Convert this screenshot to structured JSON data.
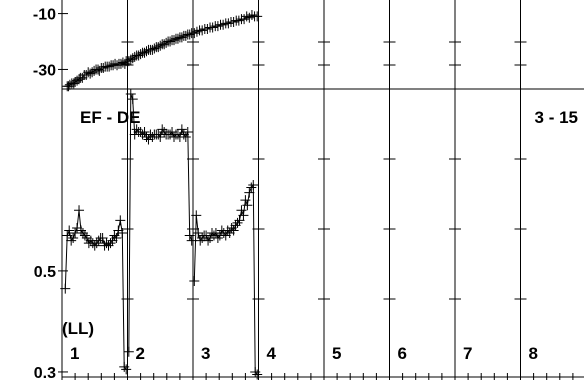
{
  "chart_data": {
    "type": "line",
    "panels": [
      {
        "id": "top",
        "ylim": [
          -37,
          -8
        ],
        "yticks": [
          {
            "value": -10,
            "label": "-10"
          },
          {
            "value": -30,
            "label": "-30"
          }
        ],
        "series": [
          {
            "x": [
              0.08,
              0.1,
              0.12,
              0.15,
              0.18,
              0.2,
              0.23,
              0.26,
              0.28,
              0.31,
              0.34,
              0.37,
              0.4,
              0.43,
              0.46,
              0.49,
              0.52,
              0.55,
              0.57,
              0.6,
              0.63,
              0.66,
              0.69,
              0.72,
              0.75,
              0.78,
              0.81,
              0.84,
              0.87,
              0.9,
              0.93,
              0.96,
              0.98
            ],
            "y": [
              -36,
              -36,
              -35.5,
              -35,
              -35,
              -34.5,
              -34,
              -33.5,
              -33,
              -33,
              -32,
              -32,
              -31,
              -31.5,
              -31,
              -30.5,
              -30,
              -30,
              -30.5,
              -29.5,
              -29.5,
              -29,
              -29,
              -29,
              -28.5,
              -28.5,
              -28,
              -28.5,
              -28,
              -28,
              -27.5,
              -28,
              -27
            ]
          },
          {
            "x": [
              1.02,
              1.05,
              1.08,
              1.11,
              1.14,
              1.17,
              1.2,
              1.23,
              1.26,
              1.29,
              1.32,
              1.35,
              1.38,
              1.41,
              1.44,
              1.47,
              1.5,
              1.53,
              1.56,
              1.59,
              1.62,
              1.65,
              1.68,
              1.71,
              1.74,
              1.77,
              1.8,
              1.83,
              1.86,
              1.89,
              1.92,
              1.95,
              1.98
            ],
            "y": [
              -27,
              -26.5,
              -26,
              -25.5,
              -25,
              -25,
              -24.5,
              -24,
              -24,
              -23.5,
              -23,
              -23,
              -23,
              -22.5,
              -22,
              -22,
              -21.5,
              -21,
              -21,
              -20.5,
              -20,
              -20,
              -19.5,
              -19.5,
              -19,
              -19,
              -18.5,
              -18.5,
              -18,
              -18,
              -17.5,
              -17.5,
              -17
            ]
          },
          {
            "x": [
              2.02,
              2.06,
              2.1,
              2.14,
              2.18,
              2.22,
              2.26,
              2.3,
              2.34,
              2.38,
              2.42,
              2.46,
              2.5,
              2.54,
              2.58,
              2.62,
              2.66,
              2.7,
              2.74,
              2.78,
              2.82,
              2.86,
              2.9,
              2.94,
              2.98
            ],
            "y": [
              -17,
              -16.5,
              -16,
              -16,
              -15.5,
              -15.5,
              -15,
              -15,
              -14.5,
              -14.5,
              -14,
              -14,
              -13.5,
              -13.5,
              -13,
              -13,
              -12.5,
              -12.5,
              -12,
              -12,
              -11,
              -11.5,
              -10.5,
              -11,
              -11
            ]
          }
        ]
      },
      {
        "id": "main",
        "title": "EF - DE",
        "annotation": "3 - 15",
        "unit_label": "(LL)",
        "ylim": [
          0.29,
          0.86
        ],
        "yticks": [
          {
            "value": 0.5,
            "label": "0.5"
          },
          {
            "value": 0.3,
            "label": "0.3"
          }
        ],
        "categories": [
          "1",
          "2",
          "3",
          "4",
          "5",
          "6",
          "7",
          "8"
        ],
        "series": [
          {
            "x": [
              0.05,
              0.08,
              0.11,
              0.14,
              0.17,
              0.2,
              0.23,
              0.26,
              0.29,
              0.32,
              0.35,
              0.38,
              0.41,
              0.44,
              0.47,
              0.5,
              0.53,
              0.56,
              0.59,
              0.62,
              0.65,
              0.68,
              0.71,
              0.74,
              0.77,
              0.8,
              0.83,
              0.86,
              0.89,
              0.92,
              0.95,
              0.98
            ],
            "y": [
              0.465,
              0.57,
              0.58,
              0.56,
              0.565,
              0.575,
              0.585,
              0.62,
              0.58,
              0.575,
              0.57,
              0.565,
              0.555,
              0.56,
              0.555,
              0.55,
              0.555,
              0.56,
              0.565,
              0.565,
              0.55,
              0.555,
              0.55,
              0.555,
              0.56,
              0.57,
              0.565,
              0.58,
              0.6,
              0.575,
              0.31,
              0.305
            ]
          },
          {
            "x": [
              1.02,
              1.05,
              1.08,
              1.11,
              1.14,
              1.17,
              1.2,
              1.23,
              1.26,
              1.29,
              1.32,
              1.35,
              1.38,
              1.41,
              1.44,
              1.47,
              1.5,
              1.53,
              1.56,
              1.59,
              1.62,
              1.65,
              1.68,
              1.71,
              1.74,
              1.77,
              1.8,
              1.83,
              1.86,
              1.89,
              1.92,
              1.95,
              1.98
            ],
            "y": [
              0.34,
              0.85,
              0.84,
              0.77,
              0.78,
              0.775,
              0.775,
              0.77,
              0.775,
              0.765,
              0.76,
              0.77,
              0.765,
              0.77,
              0.77,
              0.77,
              0.765,
              0.78,
              0.775,
              0.77,
              0.77,
              0.77,
              0.775,
              0.765,
              0.77,
              0.77,
              0.765,
              0.78,
              0.77,
              0.765,
              0.775,
              0.57,
              0.56
            ]
          },
          {
            "x": [
              2.02,
              2.05,
              2.08,
              2.11,
              2.14,
              2.17,
              2.2,
              2.23,
              2.26,
              2.29,
              2.32,
              2.35,
              2.38,
              2.41,
              2.44,
              2.47,
              2.5,
              2.53,
              2.56,
              2.59,
              2.62,
              2.65,
              2.68,
              2.71,
              2.74,
              2.77,
              2.8,
              2.83,
              2.86,
              2.89,
              2.92,
              2.95,
              2.98
            ],
            "y": [
              0.48,
              0.61,
              0.575,
              0.56,
              0.565,
              0.57,
              0.57,
              0.56,
              0.565,
              0.575,
              0.57,
              0.575,
              0.565,
              0.57,
              0.58,
              0.575,
              0.57,
              0.58,
              0.575,
              0.585,
              0.58,
              0.59,
              0.595,
              0.6,
              0.62,
              0.61,
              0.64,
              0.63,
              0.655,
              0.665,
              0.67,
              0.3,
              0.295
            ]
          }
        ]
      }
    ]
  }
}
